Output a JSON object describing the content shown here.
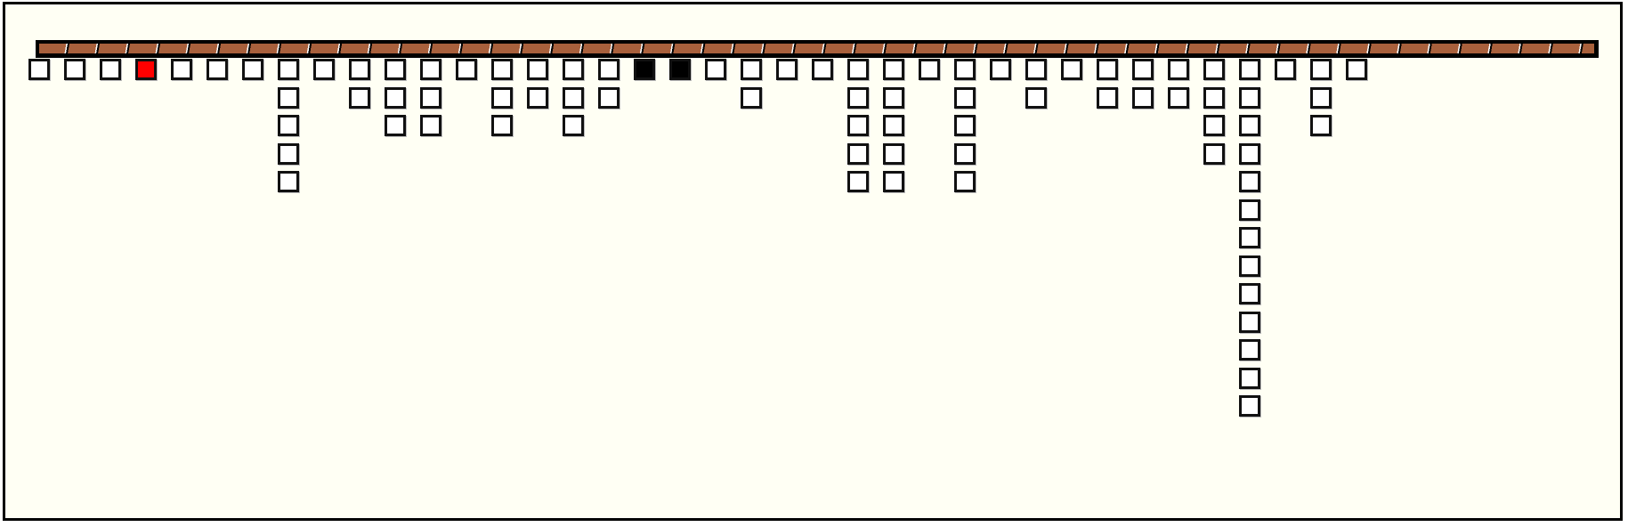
{
  "board": {
    "background_color": "#fffff4",
    "bar_color": "#a8603c",
    "columns": [
      {
        "count": 1,
        "state": "empty"
      },
      {
        "count": 1,
        "state": "empty"
      },
      {
        "count": 1,
        "state": "empty"
      },
      {
        "count": 1,
        "state": "red"
      },
      {
        "count": 1,
        "state": "empty"
      },
      {
        "count": 1,
        "state": "empty"
      },
      {
        "count": 1,
        "state": "empty"
      },
      {
        "count": 5,
        "state": "empty"
      },
      {
        "count": 1,
        "state": "empty"
      },
      {
        "count": 2,
        "state": "empty"
      },
      {
        "count": 3,
        "state": "empty"
      },
      {
        "count": 3,
        "state": "empty"
      },
      {
        "count": 1,
        "state": "empty"
      },
      {
        "count": 3,
        "state": "empty"
      },
      {
        "count": 2,
        "state": "empty"
      },
      {
        "count": 3,
        "state": "empty"
      },
      {
        "count": 2,
        "state": "empty"
      },
      {
        "count": 1,
        "state": "black"
      },
      {
        "count": 1,
        "state": "black"
      },
      {
        "count": 1,
        "state": "empty"
      },
      {
        "count": 2,
        "state": "empty"
      },
      {
        "count": 1,
        "state": "empty"
      },
      {
        "count": 1,
        "state": "empty"
      },
      {
        "count": 5,
        "state": "empty"
      },
      {
        "count": 5,
        "state": "empty"
      },
      {
        "count": 1,
        "state": "empty"
      },
      {
        "count": 5,
        "state": "empty"
      },
      {
        "count": 1,
        "state": "empty"
      },
      {
        "count": 2,
        "state": "empty"
      },
      {
        "count": 1,
        "state": "empty"
      },
      {
        "count": 2,
        "state": "empty"
      },
      {
        "count": 2,
        "state": "empty"
      },
      {
        "count": 2,
        "state": "empty"
      },
      {
        "count": 4,
        "state": "empty"
      },
      {
        "count": 13,
        "state": "empty"
      },
      {
        "count": 1,
        "state": "empty"
      },
      {
        "count": 3,
        "state": "empty"
      },
      {
        "count": 1,
        "state": "empty"
      }
    ]
  }
}
